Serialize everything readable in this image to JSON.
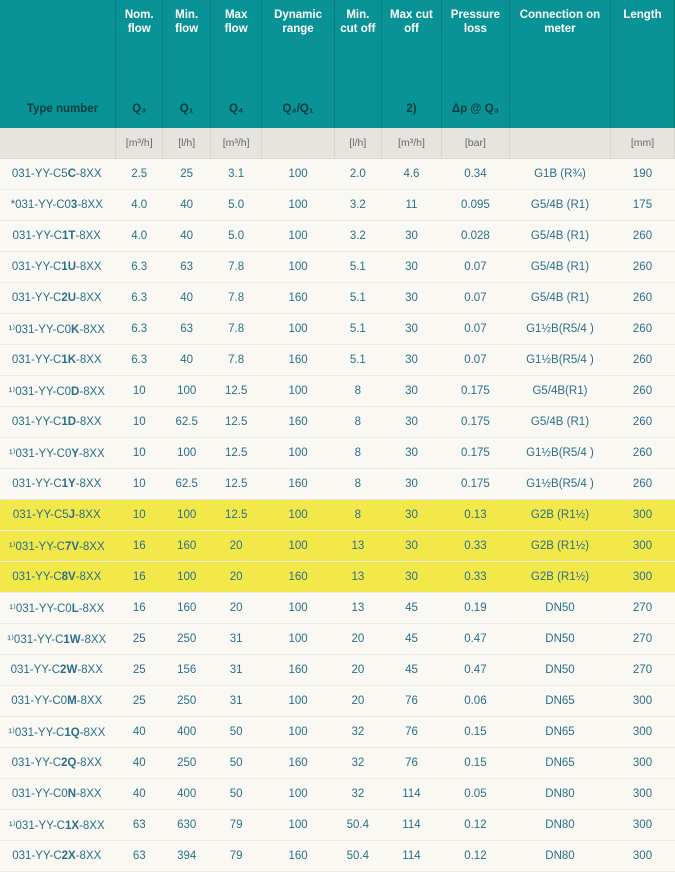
{
  "headers": {
    "row1": [
      "",
      "Nom. flow",
      "Min. flow",
      "Max flow",
      "Dynamic range",
      "Min. cut off",
      "Max cut off",
      "Pressure loss",
      "Connection on meter",
      "Length"
    ],
    "row2_label": "Type number",
    "row2": [
      "Q₃",
      "Q₁",
      "Q₄",
      "Q₃/Q₁",
      "",
      "2)",
      "Δp @ Q₃",
      "",
      ""
    ],
    "units": [
      "",
      "[m³/h]",
      "[l/h]",
      "[m³/h]",
      "",
      "[l/h]",
      "[m³/h]",
      "[bar]",
      "",
      "[mm]"
    ]
  },
  "rows": [
    {
      "tn": "031-YY-C5<b>C</b>-8XX",
      "v": [
        "2.5",
        "25",
        "3.1",
        "100",
        "2.0",
        "4.6",
        "0.34",
        "G1B (R¾)",
        "190"
      ]
    },
    {
      "tn": "*031-YY-C0<b>3</b>-8XX",
      "v": [
        "4.0",
        "40",
        "5.0",
        "100",
        "3.2",
        "11",
        "0.095",
        "G5/4B (R1)",
        "175"
      ]
    },
    {
      "tn": "031-YY-C<b>1T</b>-8XX",
      "v": [
        "4.0",
        "40",
        "5.0",
        "100",
        "3.2",
        "30",
        "0.028",
        "G5/4B (R1)",
        "260"
      ]
    },
    {
      "tn": "031-YY-C<b>1U</b>-8XX",
      "v": [
        "6.3",
        "63",
        "7.8",
        "100",
        "5.1",
        "30",
        "0.07",
        "G5/4B (R1)",
        "260"
      ]
    },
    {
      "tn": "031-YY-C<b>2U</b>-8XX",
      "v": [
        "6.3",
        "40",
        "7.8",
        "160",
        "5.1",
        "30",
        "0.07",
        "G5/4B (R1)",
        "260"
      ]
    },
    {
      "tn": "¹⁾031-YY-C0<b>K</b>-8XX",
      "v": [
        "6.3",
        "63",
        "7.8",
        "100",
        "5.1",
        "30",
        "0.07",
        "G1½B(R5/4 )",
        "260"
      ]
    },
    {
      "tn": "031-YY-C<b>1K</b>-8XX",
      "v": [
        "6.3",
        "40",
        "7.8",
        "160",
        "5.1",
        "30",
        "0.07",
        "G1½B(R5/4 )",
        "260"
      ]
    },
    {
      "tn": "¹⁾031-YY-C0<b>D</b>-8XX",
      "v": [
        "10",
        "100",
        "12.5",
        "100",
        "8",
        "30",
        "0.175",
        "G5/4B(R1)",
        "260"
      ]
    },
    {
      "tn": "031-YY-C<b>1D</b>-8XX",
      "v": [
        "10",
        "62.5",
        "12.5",
        "160",
        "8",
        "30",
        "0.175",
        "G5/4B (R1)",
        "260"
      ]
    },
    {
      "tn": "¹⁾031-YY-C0<b>Y</b>-8XX",
      "v": [
        "10",
        "100",
        "12.5",
        "100",
        "8",
        "30",
        "0.175",
        "G1½B(R5/4 )",
        "260"
      ]
    },
    {
      "tn": "031-YY-C<b>1Y</b>-8XX",
      "v": [
        "10",
        "62.5",
        "12.5",
        "160",
        "8",
        "30",
        "0.175",
        "G1½B(R5/4 )",
        "260"
      ]
    },
    {
      "tn": "031-YY-C5<b>J</b>-8XX",
      "v": [
        "10",
        "100",
        "12.5",
        "100",
        "8",
        "30",
        "0.13",
        "G2B (R1½)",
        "300"
      ],
      "hl": true
    },
    {
      "tn": "¹⁾031-YY-C<b>7V</b>-8XX",
      "v": [
        "16",
        "160",
        "20",
        "100",
        "13",
        "30",
        "0.33",
        "G2B (R1½)",
        "300"
      ],
      "hl": true
    },
    {
      "tn": "031-YY-C<b>8V</b>-8XX",
      "v": [
        "16",
        "100",
        "20",
        "160",
        "13",
        "30",
        "0.33",
        "G2B (R1½)",
        "300"
      ],
      "hl": true
    },
    {
      "tn": "¹⁾031-YY-C0<b>L</b>-8XX",
      "v": [
        "16",
        "160",
        "20",
        "100",
        "13",
        "45",
        "0.19",
        "DN50",
        "270"
      ]
    },
    {
      "tn": "¹⁾031-YY-C<b>1W</b>-8XX",
      "v": [
        "25",
        "250",
        "31",
        "100",
        "20",
        "45",
        "0.47",
        "DN50",
        "270"
      ]
    },
    {
      "tn": "031-YY-C<b>2W</b>-8XX",
      "v": [
        "25",
        "156",
        "31",
        "160",
        "20",
        "45",
        "0.47",
        "DN50",
        "270"
      ]
    },
    {
      "tn": "031-YY-C0<b>M</b>-8XX",
      "v": [
        "25",
        "250",
        "31",
        "100",
        "20",
        "76",
        "0.06",
        "DN65",
        "300"
      ]
    },
    {
      "tn": "¹⁾031-YY-C<b>1Q</b>-8XX",
      "v": [
        "40",
        "400",
        "50",
        "100",
        "32",
        "76",
        "0.15",
        "DN65",
        "300"
      ]
    },
    {
      "tn": "031-YY-C<b>2Q</b>-8XX",
      "v": [
        "40",
        "250",
        "50",
        "160",
        "32",
        "76",
        "0.15",
        "DN65",
        "300"
      ]
    },
    {
      "tn": "031-YY-C0<b>N</b>-8XX",
      "v": [
        "40",
        "400",
        "50",
        "100",
        "32",
        "114",
        "0.05",
        "DN80",
        "300"
      ]
    },
    {
      "tn": "¹⁾031-YY-C<b>1X</b>-8XX",
      "v": [
        "63",
        "630",
        "79",
        "100",
        "50.4",
        "114",
        "0.12",
        "DN80",
        "300"
      ]
    },
    {
      "tn": "031-YY-C<b>2X</b>-8XX",
      "v": [
        "63",
        "394",
        "79",
        "160",
        "50.4",
        "114",
        "0.12",
        "DN80",
        "300"
      ]
    }
  ]
}
